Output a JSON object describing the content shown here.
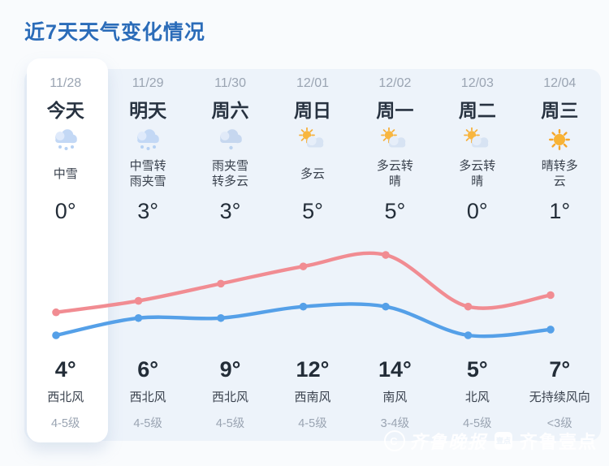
{
  "page": {
    "title": "近7天天气变化情况"
  },
  "theme": {
    "title_color": "#2b6cb9",
    "panel_bg": "#edf3fa",
    "today_card_bg": "#ffffff",
    "high_line_color": "#f18c92",
    "low_line_color": "#55a0e8",
    "muted_text_color": "#9aa4b2",
    "dark_text_color": "#273240"
  },
  "days": [
    {
      "date": "11/28",
      "name": "今天",
      "icon": "snow",
      "condition": "中雪",
      "low_temp": "0°",
      "high_temp": "4°",
      "wind_dir": "西北风",
      "wind_level": "4-5级"
    },
    {
      "date": "11/29",
      "name": "明天",
      "icon": "snow",
      "condition": "中雪转雨夹雪",
      "low_temp": "3°",
      "high_temp": "6°",
      "wind_dir": "西北风",
      "wind_level": "4-5级"
    },
    {
      "date": "11/30",
      "name": "周六",
      "icon": "sleet",
      "condition": "雨夹雪转多云",
      "low_temp": "3°",
      "high_temp": "9°",
      "wind_dir": "西北风",
      "wind_level": "4-5级"
    },
    {
      "date": "12/01",
      "name": "周日",
      "icon": "partly",
      "condition": "多云",
      "low_temp": "5°",
      "high_temp": "12°",
      "wind_dir": "西南风",
      "wind_level": "4-5级"
    },
    {
      "date": "12/02",
      "name": "周一",
      "icon": "partly",
      "condition": "多云转晴",
      "low_temp": "5°",
      "high_temp": "14°",
      "wind_dir": "南风",
      "wind_level": "3-4级"
    },
    {
      "date": "12/03",
      "name": "周二",
      "icon": "partly",
      "condition": "多云转晴",
      "low_temp": "0°",
      "high_temp": "5°",
      "wind_dir": "北风",
      "wind_level": "4-5级"
    },
    {
      "date": "12/04",
      "name": "周三",
      "icon": "sunny",
      "condition": "晴转多云",
      "low_temp": "1°",
      "high_temp": "7°",
      "wind_dir": "无持续风向",
      "wind_level": "<3级"
    }
  ],
  "chart_data": {
    "type": "line",
    "categories": [
      "11/28",
      "11/29",
      "11/30",
      "12/01",
      "12/02",
      "12/03",
      "12/04"
    ],
    "series": [
      {
        "name": "high",
        "color": "#f18c92",
        "values": [
          4,
          6,
          9,
          12,
          14,
          5,
          7
        ]
      },
      {
        "name": "low",
        "color": "#55a0e8",
        "values": [
          0,
          3,
          3,
          5,
          5,
          0,
          1
        ]
      }
    ],
    "unit": "°",
    "ylim": [
      0,
      14
    ],
    "grid": false,
    "legend": "none",
    "smooth": true
  },
  "watermark": {
    "brand1": "齐鲁晚报",
    "badge": "壹点",
    "brand2": "齐鲁壹点",
    "copyright_mark": "C"
  }
}
